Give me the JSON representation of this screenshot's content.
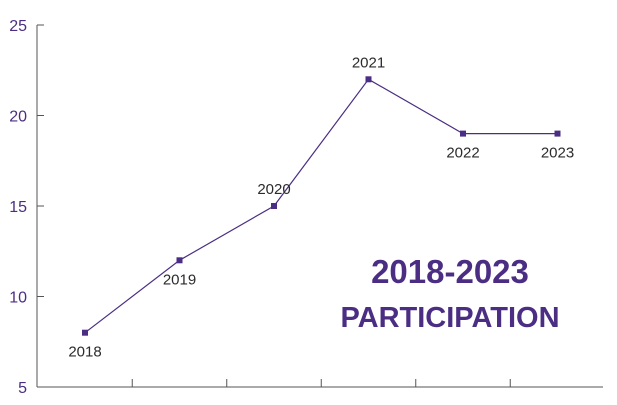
{
  "chart_data": {
    "type": "line",
    "title": "2018-2023",
    "subtitle": "PARTICIPATION",
    "x": [
      "2018",
      "2019",
      "2020",
      "2021",
      "2022",
      "2023"
    ],
    "series": [
      {
        "values": [
          8,
          12,
          15,
          22,
          19,
          19
        ]
      }
    ],
    "ylim": [
      5,
      25
    ],
    "yticks": [
      5,
      10,
      15,
      20,
      25
    ],
    "point_label_position": [
      "below",
      "below",
      "above",
      "above",
      "below",
      "below"
    ],
    "grid": false,
    "legend": "none",
    "colors": {
      "line": "#4b2e83",
      "marker": "#4b2e83",
      "axis": "#555555",
      "tick_label": "#4b2e83",
      "title": "#4b2e83",
      "point_label": "#2b2b2b"
    }
  }
}
